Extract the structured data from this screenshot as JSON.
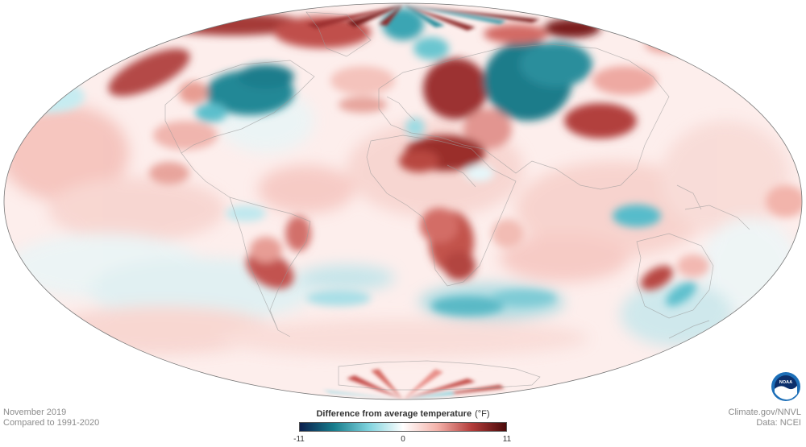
{
  "map": {
    "projection": "Mollweide",
    "subject": "November 2019 temperature difference from 1991-2020 average"
  },
  "footer": {
    "month_year": "November 2019",
    "comparison": "Compared to 1991-2020",
    "site": "Climate.gov/NNVL",
    "data_source": "Data: NCEI"
  },
  "legend": {
    "title": "Difference from average temperature",
    "unit": "(°F)",
    "min_label": "-11",
    "mid_label": "0",
    "max_label": "11",
    "colors": {
      "cold_extreme": "#0b1f4d",
      "cold": "#177d8c",
      "cool": "#7ed3de",
      "neutral": "#ffffff",
      "warm": "#f4b2aa",
      "hot": "#b33c3a",
      "hot_extreme": "#4a0a0a"
    }
  },
  "logo": {
    "text": "NOAA",
    "colors": {
      "outer": "#1d6fb8",
      "inner": "#0c2f6b",
      "wave": "#ffffff"
    }
  }
}
